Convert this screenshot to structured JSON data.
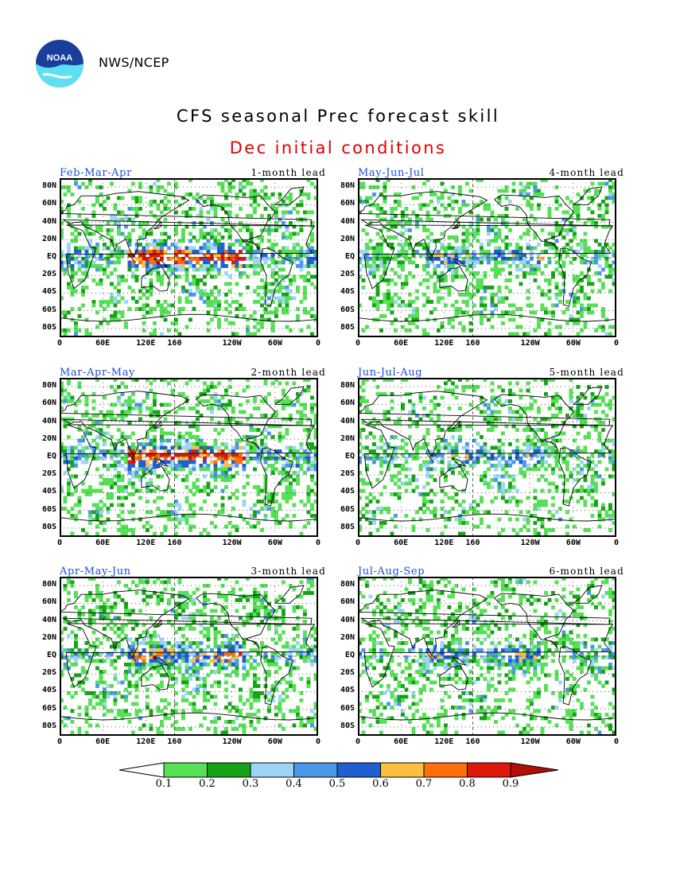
{
  "header": {
    "org": "NWS/NCEP",
    "logo_text": "NOAA",
    "title": "CFS seasonal Prec forecast skill",
    "subtitle": "Dec initial conditions"
  },
  "axes": {
    "lat_labels": [
      "80N",
      "60N",
      "40N",
      "20N",
      "EQ",
      "20S",
      "40S",
      "60S",
      "80S"
    ],
    "lon_labels": [
      "0",
      "60E",
      "120E",
      "160",
      "120W",
      "60W",
      "0"
    ]
  },
  "panels": [
    {
      "season": "Feb-Mar-Apr",
      "lead": "1-month lead",
      "skill": "high"
    },
    {
      "season": "May-Jun-Jul",
      "lead": "4-month lead",
      "skill": "low"
    },
    {
      "season": "Mar-Apr-May",
      "lead": "2-month lead",
      "skill": "high"
    },
    {
      "season": "Jun-Jul-Aug",
      "lead": "5-month lead",
      "skill": "low"
    },
    {
      "season": "Apr-May-Jun",
      "lead": "3-month lead",
      "skill": "mid"
    },
    {
      "season": "Jul-Aug-Sep",
      "lead": "6-month lead",
      "skill": "low"
    }
  ],
  "colorbar": {
    "labels": [
      "0.1",
      "0.2",
      "0.3",
      "0.4",
      "0.5",
      "0.6",
      "0.7",
      "0.8",
      "0.9"
    ],
    "colors": [
      "#ffffff",
      "#55e055",
      "#17a317",
      "#9ed5f7",
      "#4a97e8",
      "#1f5fd0",
      "#fcc040",
      "#fc6e0e",
      "#e01a0a",
      "#b0120a"
    ]
  }
}
